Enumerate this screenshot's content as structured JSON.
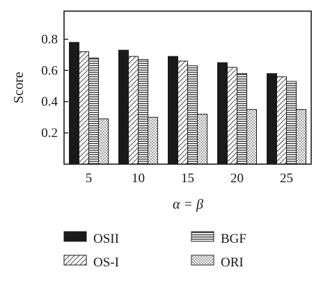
{
  "chart_data": {
    "type": "bar",
    "xlabel": "α = β",
    "ylabel": "Score",
    "categories": [
      "5",
      "10",
      "15",
      "20",
      "25"
    ],
    "y_ticks": [
      "0.2",
      "0.4",
      "0.6",
      "0.8"
    ],
    "ylim": [
      0.0,
      0.98
    ],
    "grid": false,
    "legend_position": "bottom",
    "series": [
      {
        "name": "OSII",
        "pattern": "solid",
        "color": "#1a1a1a",
        "values": [
          0.78,
          0.73,
          0.69,
          0.65,
          0.58
        ]
      },
      {
        "name": "OS-I",
        "pattern": "diagonal-hatch",
        "color": "#1a1a1a",
        "values": [
          0.72,
          0.69,
          0.66,
          0.62,
          0.56
        ]
      },
      {
        "name": "BGF",
        "pattern": "horizontal-lines",
        "color": "#1a1a1a",
        "values": [
          0.68,
          0.67,
          0.63,
          0.58,
          0.53
        ]
      },
      {
        "name": "ORI",
        "pattern": "dots",
        "color": "#1a1a1a",
        "values": [
          0.29,
          0.3,
          0.32,
          0.35,
          0.35
        ]
      }
    ]
  }
}
